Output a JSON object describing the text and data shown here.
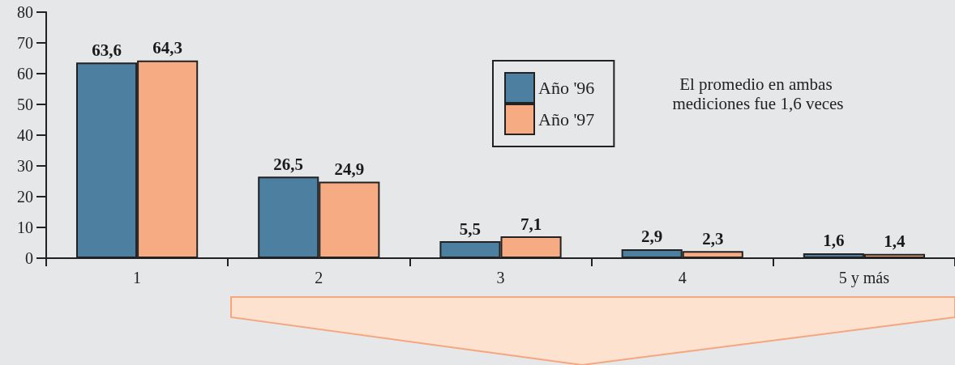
{
  "chart_data": {
    "type": "bar",
    "categories": [
      "1",
      "2",
      "3",
      "4",
      "5 y más"
    ],
    "series": [
      {
        "name": "Año '96",
        "color": "#4d7fa0",
        "values": [
          63.6,
          26.5,
          5.5,
          2.9,
          1.6
        ],
        "value_labels": [
          "63,6",
          "26,5",
          "5,5",
          "2,9",
          "1,6"
        ]
      },
      {
        "name": "Año '97",
        "color": "#f7ab83",
        "values": [
          64.3,
          24.9,
          7.1,
          2.3,
          1.4
        ],
        "value_labels": [
          "64,3",
          "24,9",
          "7,1",
          "2,3",
          "1,4"
        ]
      }
    ],
    "ylim": [
      0,
      80
    ],
    "yticks": [
      0,
      10,
      20,
      30,
      40,
      50,
      60,
      70,
      80
    ],
    "legend": "top right",
    "grid": false,
    "annotations": [
      "El promedio en ambas mediciones fue 1,6 veces"
    ]
  }
}
